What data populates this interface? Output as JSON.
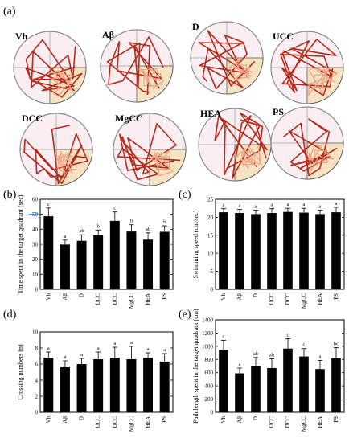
{
  "figure": {
    "panel_labels": [
      "(a)",
      "(b)",
      "(c)",
      "(d)",
      "(e)"
    ],
    "groups": [
      "Vh",
      "Aβ",
      "D",
      "UCC",
      "DCC",
      "MgCC",
      "HEA",
      "PS"
    ]
  },
  "colors": {
    "bar": "#000000",
    "track": "#b52a1a",
    "track_target": "#f2a58a",
    "target_quadrant": "#f6e3c3",
    "pool_fill": "#fbeef2",
    "pool_stroke": "#8a8a8a",
    "highlight": "#1e90ff"
  },
  "chart_data": [
    {
      "panel": "(b)",
      "type": "bar",
      "ylabel": "Time spent in the target quadrant (sec)",
      "categories": [
        "Vh",
        "Aβ",
        "D",
        "UCC",
        "DCC",
        "MgCC",
        "HEA",
        "PS"
      ],
      "values": [
        48.7,
        29.8,
        32.3,
        36.0,
        45.6,
        38.5,
        33.1,
        38.3
      ],
      "errors": [
        5.5,
        3.0,
        4.0,
        3.5,
        6.0,
        4.5,
        4.5,
        4.0
      ],
      "annotations": [
        "c",
        "a",
        "ab",
        "b",
        "c",
        "b",
        "ab",
        "b"
      ],
      "ylim": [
        0,
        60
      ],
      "yticks": [
        "0",
        "10",
        "20",
        "30",
        "40",
        "50",
        "60"
      ],
      "grid": false
    },
    {
      "panel": "(c)",
      "type": "bar",
      "ylabel": "Swimming speed (cm/sec)",
      "categories": [
        "Vh",
        "Aβ",
        "D",
        "UCC",
        "DCC",
        "MgCC",
        "HEA",
        "PS"
      ],
      "values": [
        21.4,
        21.2,
        20.9,
        21.2,
        21.5,
        21.3,
        20.9,
        21.4
      ],
      "errors": [
        1.0,
        1.0,
        1.1,
        1.2,
        1.0,
        1.2,
        1.1,
        1.4
      ],
      "annotations": [
        "a",
        "a",
        "a",
        "a",
        "a",
        "a",
        "a",
        "a"
      ],
      "ylim": [
        0,
        25
      ],
      "yticks": [
        "0",
        "5",
        "10",
        "15",
        "20",
        "25"
      ],
      "grid": false
    },
    {
      "panel": "(d)",
      "type": "bar",
      "ylabel": "Crossing numbers (n)",
      "categories": [
        "Vh",
        "Aβ",
        "D",
        "UCC",
        "DCC",
        "MgCC",
        "HEA",
        "PS"
      ],
      "values": [
        6.8,
        5.6,
        6.0,
        6.6,
        6.8,
        6.6,
        6.8,
        6.3
      ],
      "errors": [
        0.7,
        0.8,
        0.7,
        0.9,
        1.3,
        1.6,
        0.6,
        1.0
      ],
      "annotations": [
        "a",
        "a",
        "a",
        "a",
        "a",
        "a",
        "a",
        "a"
      ],
      "ylim": [
        0,
        10
      ],
      "yticks": [
        "0",
        "2",
        "4",
        "6",
        "8",
        "10"
      ],
      "grid": false
    },
    {
      "panel": "(e)",
      "type": "bar",
      "ylabel": "Path length spent in the target quadrant (cm)",
      "categories": [
        "Vh",
        "Aβ",
        "D",
        "UCC",
        "DCC",
        "MgCC",
        "HEA",
        "PS"
      ],
      "values": [
        950,
        590,
        700,
        670,
        965,
        845,
        655,
        820
      ],
      "errors": [
        140,
        80,
        130,
        140,
        150,
        120,
        130,
        160
      ],
      "annotations": [
        "c",
        "a",
        "ab",
        "ab",
        "c",
        "c",
        "a",
        "bc"
      ],
      "ylim": [
        0,
        1400
      ],
      "yticks": [
        "0",
        "200",
        "400",
        "600",
        "800",
        "1000",
        "1200",
        "1400"
      ],
      "grid": false
    }
  ]
}
